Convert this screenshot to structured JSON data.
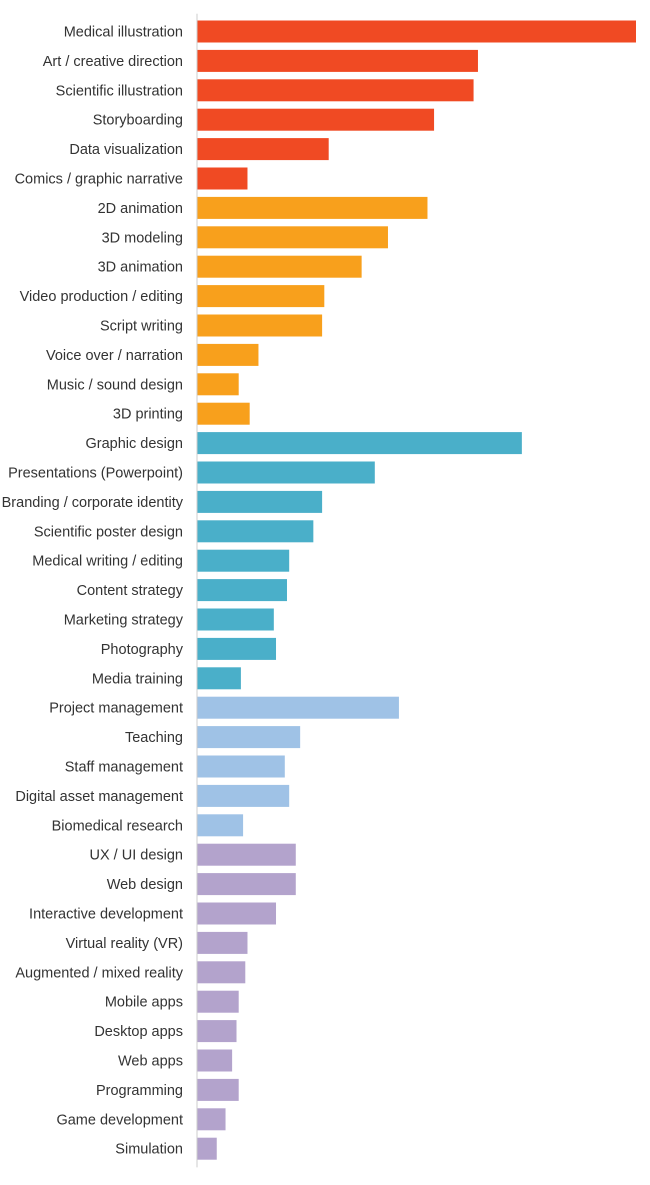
{
  "chart_data": {
    "type": "bar",
    "orientation": "horizontal",
    "title": "",
    "xlabel": "",
    "ylabel": "",
    "grid": false,
    "legend": "none",
    "xlim": [
      0,
      100
    ],
    "categories": [
      "Medical illustration",
      "Art / creative direction",
      "Scientific illustration",
      "Storyboarding",
      "Data visualization",
      "Comics / graphic narrative",
      "2D animation",
      "3D modeling",
      "3D animation",
      "Video production / editing",
      "Script writing",
      "Voice over / narration",
      "Music / sound design",
      "3D printing",
      "Graphic design",
      "Presentations (Powerpoint)",
      "Branding / corporate identity",
      "Scientific poster design",
      "Medical writing / editing",
      "Content strategy",
      "Marketing strategy",
      "Photography",
      "Media training",
      "Project management",
      "Teaching",
      "Staff management",
      "Digital asset management",
      "Biomedical research",
      "UX / UI design",
      "Web design",
      "Interactive development",
      "Virtual reality (VR)",
      "Augmented / mixed reality",
      "Mobile apps",
      "Desktop apps",
      "Web apps",
      "Programming",
      "Game development",
      "Simulation"
    ],
    "values": [
      100,
      64,
      63,
      54,
      30,
      11.5,
      52.5,
      43.5,
      37.5,
      29,
      28.5,
      14,
      9.5,
      12,
      74,
      40.5,
      28.5,
      26.5,
      21,
      20.5,
      17.5,
      18,
      10,
      46,
      23.5,
      20,
      21,
      10.5,
      22.5,
      22.5,
      18,
      11.5,
      11,
      9.5,
      9,
      8,
      9.5,
      6.5,
      4.5
    ],
    "groups": [
      0,
      0,
      0,
      0,
      0,
      0,
      1,
      1,
      1,
      1,
      1,
      1,
      1,
      1,
      2,
      2,
      2,
      2,
      2,
      2,
      2,
      2,
      2,
      3,
      3,
      3,
      3,
      3,
      4,
      4,
      4,
      4,
      4,
      4,
      4,
      4,
      4,
      4,
      4
    ],
    "group_colors": [
      "#f04a23",
      "#f8a01c",
      "#4aafc9",
      "#9fc2e6",
      "#b3a3cc"
    ],
    "axis_color": "#cccccc"
  }
}
